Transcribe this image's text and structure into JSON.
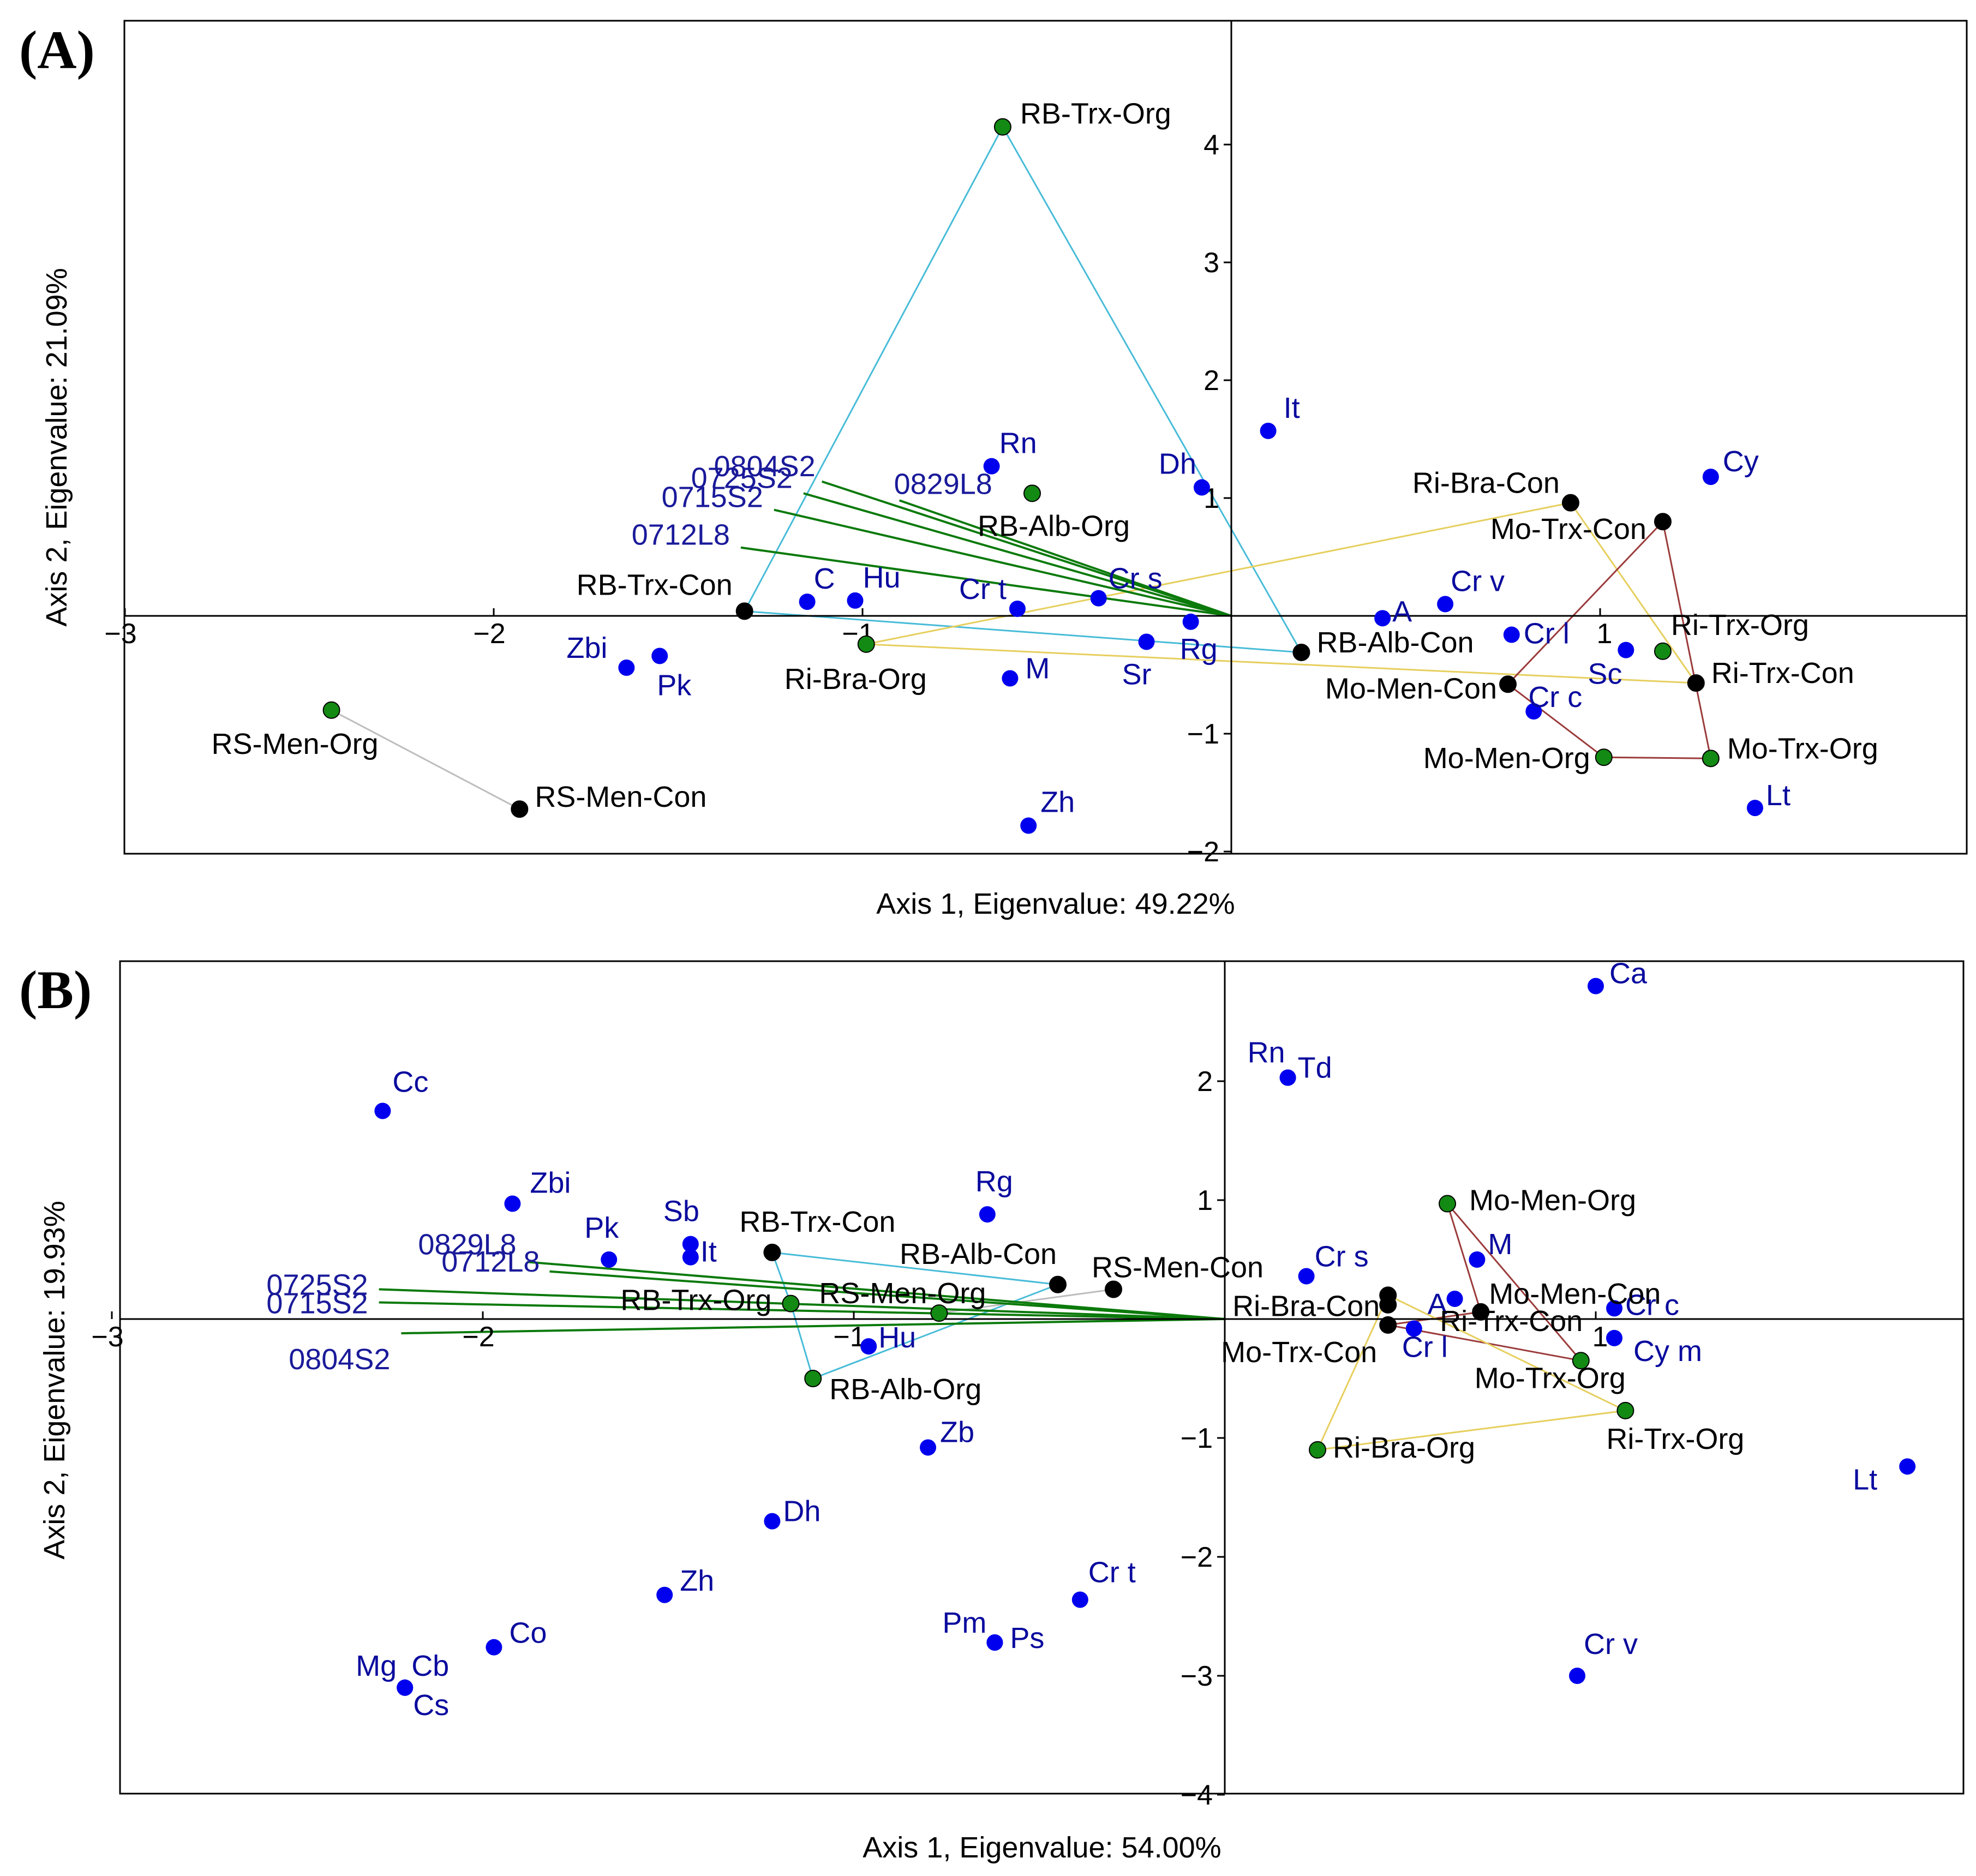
{
  "figure": {
    "colors": {
      "species": "#0000ee",
      "site_con": "#000000",
      "site_org": "#138a13",
      "env_vector": "#0b7a0b",
      "hull_RB": "#48bcd8",
      "hull_Ri": "#e6cf5e",
      "hull_Mo": "#9b3b3b",
      "hull_RS": "#bdbdbd",
      "frame": "#000000"
    }
  },
  "chart_data": [
    {
      "panel": "(A)",
      "type": "scatter",
      "xlabel": "Axis 1, Eigenvalue: 49.22%",
      "ylabel": "Axis 2, Eigenvalue: 21.09%",
      "xlim": [
        -3,
        2
      ],
      "ylim": [
        -2,
        5
      ],
      "x_ticks": [
        {
          "v": -3,
          "label": "−3"
        },
        {
          "v": -2,
          "label": "−2"
        },
        {
          "v": -1,
          "label": "−1"
        },
        {
          "v": 1,
          "label": "1"
        }
      ],
      "y_ticks": [
        {
          "v": 4,
          "label": "4"
        },
        {
          "v": 3,
          "label": "3"
        },
        {
          "v": 2,
          "label": "2"
        },
        {
          "v": 1,
          "label": "1"
        },
        {
          "v": -1,
          "label": "−1"
        },
        {
          "v": -2,
          "label": "−2"
        }
      ],
      "species": [
        {
          "label": "It",
          "x": 0.1,
          "y": 1.57
        },
        {
          "label": "Rn",
          "x": -0.65,
          "y": 1.27
        },
        {
          "label": "Dh",
          "x": -0.08,
          "y": 1.09
        },
        {
          "label": "Cy",
          "x": 1.3,
          "y": 1.18
        },
        {
          "label": "C",
          "x": -1.15,
          "y": 0.12
        },
        {
          "label": "Hu",
          "x": -1.02,
          "y": 0.13
        },
        {
          "label": "Cr t",
          "x": -0.58,
          "y": 0.06
        },
        {
          "label": "Cr s",
          "x": -0.36,
          "y": 0.15
        },
        {
          "label": "A",
          "x": 0.41,
          "y": -0.02
        },
        {
          "label": "Cr v",
          "x": 0.58,
          "y": 0.1
        },
        {
          "label": "Rg",
          "x": -0.11,
          "y": -0.05
        },
        {
          "label": "Sr",
          "x": -0.23,
          "y": -0.22
        },
        {
          "label": "Cr l",
          "x": 0.76,
          "y": -0.16
        },
        {
          "label": "Sc",
          "x": 1.07,
          "y": -0.29
        },
        {
          "label": "Zbi",
          "x": -1.64,
          "y": -0.44
        },
        {
          "label": "Pk",
          "x": -1.55,
          "y": -0.34
        },
        {
          "label": "M",
          "x": -0.6,
          "y": -0.53
        },
        {
          "label": "Cr c",
          "x": 0.82,
          "y": -0.81
        },
        {
          "label": "Zh",
          "x": -0.55,
          "y": -1.78
        },
        {
          "label": "Lt",
          "x": 1.42,
          "y": -1.63
        }
      ],
      "sites": [
        {
          "label": "RB-Trx-Org",
          "x": -0.62,
          "y": 4.15,
          "treatment": "Org"
        },
        {
          "label": "RB-Alb-Org",
          "x": -0.54,
          "y": 1.04,
          "treatment": "Org"
        },
        {
          "label": "RB-Trx-Con",
          "x": -1.32,
          "y": 0.04,
          "treatment": "Con"
        },
        {
          "label": "Ri-Bra-Org",
          "x": -0.99,
          "y": -0.24,
          "treatment": "Org"
        },
        {
          "label": "RB-Alb-Con",
          "x": 0.19,
          "y": -0.31,
          "treatment": "Con"
        },
        {
          "label": "RS-Men-Org",
          "x": -2.44,
          "y": -0.8,
          "treatment": "Org"
        },
        {
          "label": "RS-Men-Con",
          "x": -1.93,
          "y": -1.64,
          "treatment": "Con"
        },
        {
          "label": "Ri-Bra-Con",
          "x": 0.92,
          "y": 0.96,
          "treatment": "Con"
        },
        {
          "label": "Mo-Trx-Con",
          "x": 1.17,
          "y": 0.8,
          "treatment": "Con"
        },
        {
          "label": "Ri-Trx-Org",
          "x": 1.17,
          "y": -0.3,
          "treatment": "Org"
        },
        {
          "label": "Ri-Trx-Con",
          "x": 1.26,
          "y": -0.57,
          "treatment": "Con"
        },
        {
          "label": "Mo-Men-Con",
          "x": 0.75,
          "y": -0.58,
          "treatment": "Con"
        },
        {
          "label": "Mo-Men-Org",
          "x": 1.01,
          "y": -1.2,
          "treatment": "Org"
        },
        {
          "label": "Mo-Trx-Org",
          "x": 1.3,
          "y": -1.21,
          "treatment": "Org"
        }
      ],
      "env_vectors": [
        {
          "label": "0804S2",
          "x": -1.11,
          "y": 1.14
        },
        {
          "label": "0829L8",
          "x": -0.9,
          "y": 0.98
        },
        {
          "label": "0725S2",
          "x": -1.16,
          "y": 1.04
        },
        {
          "label": "0715S2",
          "x": -1.24,
          "y": 0.9
        },
        {
          "label": "0712L8",
          "x": -1.33,
          "y": 0.58
        }
      ],
      "hulls": [
        {
          "group": "RB",
          "color": "#48bcd8",
          "points": [
            "RB-Trx-Org",
            "RB-Alb-Con",
            "RB-Trx-Con"
          ],
          "closed": true
        },
        {
          "group": "Ri",
          "color": "#e6cf5e",
          "points": [
            "Ri-Bra-Org",
            "Ri-Bra-Con",
            "Ri-Trx-Con"
          ],
          "closed": true
        },
        {
          "group": "Mo",
          "color": "#9b3b3b",
          "points": [
            "Mo-Men-Con",
            "Mo-Trx-Con",
            "Mo-Trx-Org",
            "Mo-Men-Org"
          ],
          "closed": true
        },
        {
          "group": "RS",
          "color": "#bdbdbd",
          "points": [
            "RS-Men-Org",
            "RS-Men-Con"
          ],
          "closed": false
        }
      ]
    },
    {
      "panel": "(B)",
      "type": "scatter",
      "xlabel": "Axis 1, Eigenvalue: 54.00%",
      "ylabel": "Axis 2, Eigenvalue: 19.93%",
      "xlim": [
        -3,
        2
      ],
      "ylim": [
        -4,
        3
      ],
      "x_ticks": [
        {
          "v": -3,
          "label": "−3"
        },
        {
          "v": -2,
          "label": "−2"
        },
        {
          "v": -1,
          "label": "−1"
        },
        {
          "v": 1,
          "label": "1"
        }
      ],
      "y_ticks": [
        {
          "v": 2,
          "label": "2"
        },
        {
          "v": 1,
          "label": "1"
        },
        {
          "v": -1,
          "label": "−1"
        },
        {
          "v": -2,
          "label": "−2"
        },
        {
          "v": -3,
          "label": "−3"
        },
        {
          "v": -4,
          "label": "−4"
        }
      ],
      "species": [
        {
          "label": "Ca",
          "x": 1.0,
          "y": 2.8
        },
        {
          "label": "Rn",
          "x": 0.17,
          "y": 2.03
        },
        {
          "label": "Td",
          "x": 0.17,
          "y": 2.03
        },
        {
          "label": "Cc",
          "x": -2.27,
          "y": 1.75
        },
        {
          "label": "Zbi",
          "x": -1.92,
          "y": 0.97
        },
        {
          "label": "Rg",
          "x": -0.64,
          "y": 0.88
        },
        {
          "label": "Sb",
          "x": -1.44,
          "y": 0.63
        },
        {
          "label": "Pk",
          "x": -1.66,
          "y": 0.5
        },
        {
          "label": "It",
          "x": -1.44,
          "y": 0.52
        },
        {
          "label": "M",
          "x": 0.68,
          "y": 0.5
        },
        {
          "label": "Cr s",
          "x": 0.22,
          "y": 0.36
        },
        {
          "label": "A",
          "x": 0.62,
          "y": 0.17
        },
        {
          "label": "Cr c",
          "x": 1.05,
          "y": 0.09
        },
        {
          "label": "Cr l",
          "x": 0.51,
          "y": -0.08
        },
        {
          "label": "Cy m",
          "x": 1.05,
          "y": -0.16
        },
        {
          "label": "Hu",
          "x": -0.96,
          "y": -0.23
        },
        {
          "label": "Zb",
          "x": -0.8,
          "y": -1.08
        },
        {
          "label": "Lt",
          "x": 1.84,
          "y": -1.24
        },
        {
          "label": "Dh",
          "x": -1.22,
          "y": -1.7
        },
        {
          "label": "Zh",
          "x": -1.51,
          "y": -2.32
        },
        {
          "label": "Cr t",
          "x": -0.39,
          "y": -2.36
        },
        {
          "label": "Pm",
          "x": -0.62,
          "y": -2.72
        },
        {
          "label": "Ps",
          "x": -0.62,
          "y": -2.72
        },
        {
          "label": "Co",
          "x": -1.97,
          "y": -2.76
        },
        {
          "label": "Mg",
          "x": -2.21,
          "y": -3.1
        },
        {
          "label": "Cb",
          "x": -2.21,
          "y": -3.1
        },
        {
          "label": "Cs",
          "x": -2.21,
          "y": -3.1
        },
        {
          "label": "Cr v",
          "x": 0.95,
          "y": -3.0
        }
      ],
      "sites": [
        {
          "label": "Mo-Men-Org",
          "x": 0.6,
          "y": 0.97,
          "treatment": "Org"
        },
        {
          "label": "RB-Trx-Con",
          "x": -1.22,
          "y": 0.56,
          "treatment": "Con"
        },
        {
          "label": "RB-Alb-Con",
          "x": -0.45,
          "y": 0.29,
          "treatment": "Con"
        },
        {
          "label": "RS-Men-Con",
          "x": -0.3,
          "y": 0.25,
          "treatment": "Con"
        },
        {
          "label": "RS-Men-Org",
          "x": -0.77,
          "y": 0.05,
          "treatment": "Org"
        },
        {
          "label": "RB-Trx-Org",
          "x": -1.17,
          "y": 0.13,
          "treatment": "Org"
        },
        {
          "label": "RB-Alb-Org",
          "x": -1.11,
          "y": -0.5,
          "treatment": "Org"
        },
        {
          "label": "Ri-Bra-Con",
          "x": 0.44,
          "y": 0.2,
          "treatment": "Con"
        },
        {
          "label": "Mo-Men-Con",
          "x": 0.69,
          "y": 0.06,
          "treatment": "Con"
        },
        {
          "label": "Mo-Trx-Con",
          "x": 0.44,
          "y": -0.05,
          "treatment": "Con"
        },
        {
          "label": "Ri-Trx-Con",
          "x": 0.44,
          "y": 0.12,
          "treatment": "Con"
        },
        {
          "label": "Mo-Trx-Org",
          "x": 0.96,
          "y": -0.35,
          "treatment": "Org"
        },
        {
          "label": "Ri-Trx-Org",
          "x": 1.08,
          "y": -0.77,
          "treatment": "Org"
        },
        {
          "label": "Ri-Bra-Org",
          "x": 0.25,
          "y": -1.1,
          "treatment": "Org"
        }
      ],
      "env_vectors": [
        {
          "label": "0829L8",
          "x": -1.88,
          "y": 0.48
        },
        {
          "label": "0712L8",
          "x": -1.82,
          "y": 0.4
        },
        {
          "label": "0725S2",
          "x": -2.28,
          "y": 0.25
        },
        {
          "label": "0715S2",
          "x": -2.28,
          "y": 0.14
        },
        {
          "label": "0804S2",
          "x": -2.22,
          "y": -0.12
        }
      ],
      "hulls": [
        {
          "group": "RB",
          "color": "#48bcd8",
          "points": [
            "RB-Trx-Con",
            "RB-Alb-Con",
            "RB-Alb-Org",
            "RB-Trx-Org"
          ],
          "closed": true
        },
        {
          "group": "RS",
          "color": "#bdbdbd",
          "points": [
            "RS-Men-Org",
            "RS-Men-Con"
          ],
          "closed": false
        },
        {
          "group": "Mo",
          "color": "#9b3b3b",
          "points": [
            "Mo-Men-Org",
            "Mo-Trx-Org",
            "Mo-Trx-Con",
            "Mo-Men-Con"
          ],
          "closed": true
        },
        {
          "group": "Ri",
          "color": "#e6cf5e",
          "points": [
            "Ri-Bra-Con",
            "Ri-Trx-Org",
            "Ri-Bra-Org"
          ],
          "closed": true
        }
      ]
    }
  ]
}
